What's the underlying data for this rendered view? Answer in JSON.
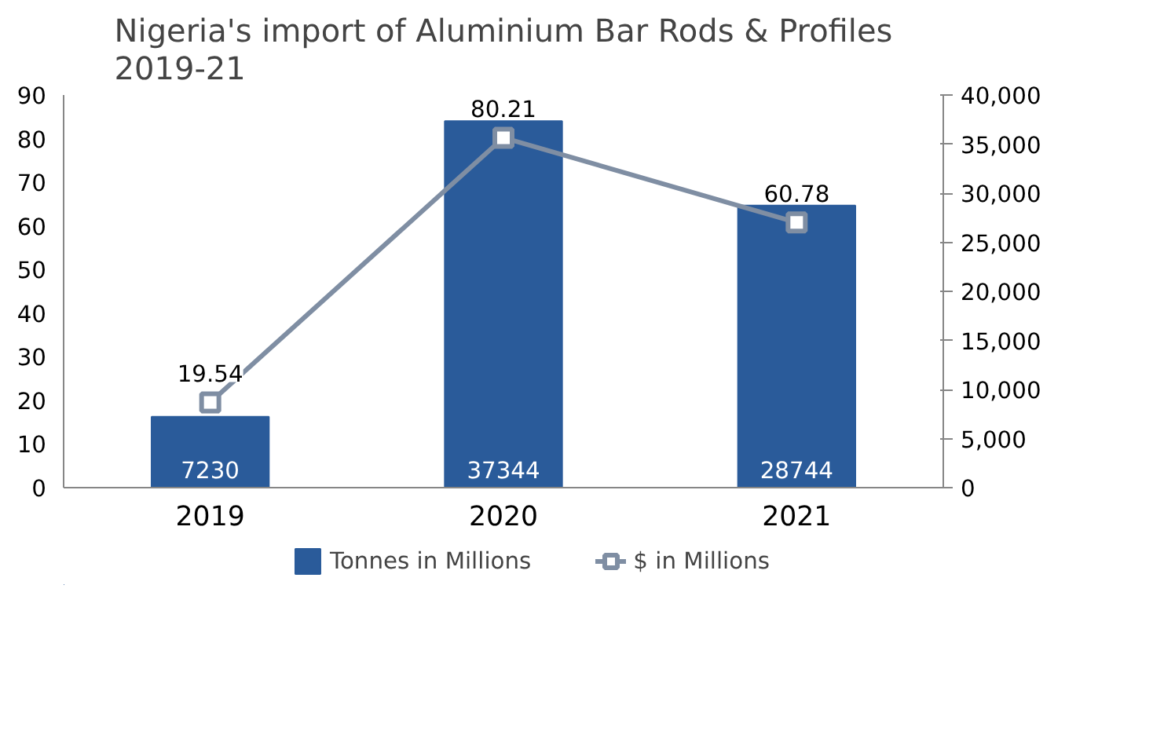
{
  "chart_data": {
    "type": "bar",
    "title": "Nigeria's import of Aluminium Bar Rods & Profiles\n2019-21",
    "categories": [
      "2019",
      "2020",
      "2021"
    ],
    "series": [
      {
        "name": "Tonnes in Millions",
        "axis": "y2",
        "color": "#2a5b9a",
        "values": [
          7230,
          37344,
          28744
        ]
      },
      {
        "name": "$ in Millions",
        "type": "line",
        "color": "#7f8ea3",
        "marker": "square",
        "values": [
          19.54,
          80.21,
          60.78
        ]
      }
    ],
    "ylim": [
      0,
      90
    ],
    "yticks": [
      0,
      10,
      20,
      30,
      40,
      50,
      60,
      70,
      80,
      90
    ],
    "y2lim": [
      0,
      40000
    ],
    "y2ticks": [
      {
        "value": 0,
        "label": "0"
      },
      {
        "value": 5000,
        "label": "5,000"
      },
      {
        "value": 10000,
        "label": "10,000"
      },
      {
        "value": 15000,
        "label": "15,000"
      },
      {
        "value": 20000,
        "label": "20,000"
      },
      {
        "value": 25000,
        "label": "25,000"
      },
      {
        "value": 30000,
        "label": "30,000"
      },
      {
        "value": 35000,
        "label": "35,000"
      },
      {
        "value": 40000,
        "label": "40,000"
      }
    ],
    "data_labels": true,
    "legend": "bottom",
    "grid": false
  }
}
